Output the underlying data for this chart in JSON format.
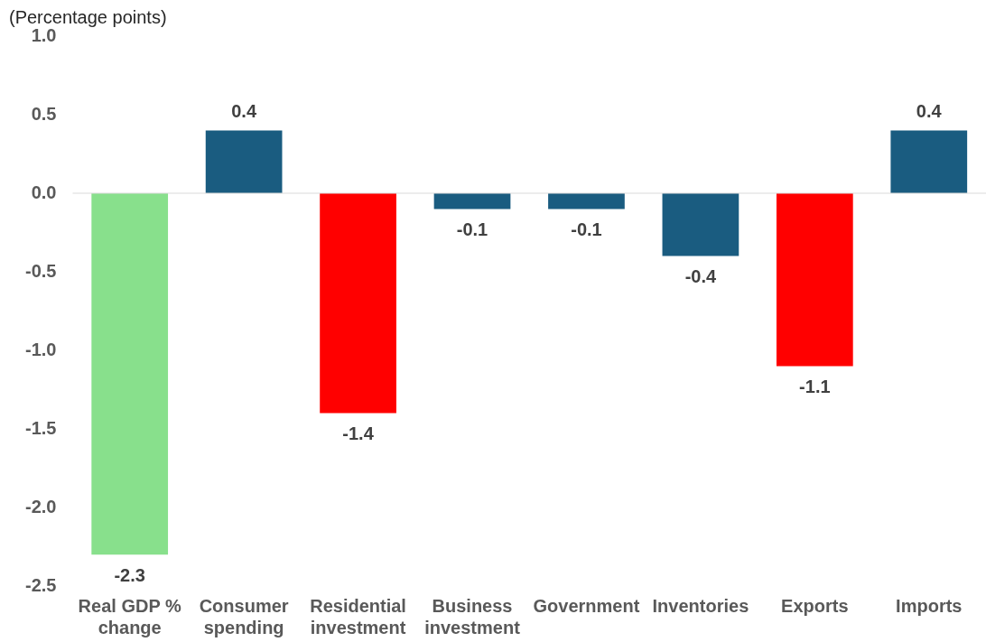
{
  "chart_data": {
    "type": "bar",
    "ylabel": "(Percentage points)",
    "categories": [
      "Real GDP % change",
      "Consumer spending",
      "Residential investment",
      "Business investment",
      "Government",
      "Inventories",
      "Exports",
      "Imports"
    ],
    "values": [
      -2.3,
      0.4,
      -1.4,
      -0.1,
      -0.1,
      -0.4,
      -1.1,
      0.4
    ],
    "colors": [
      "#88e08c",
      "#1a5c80",
      "#ff0000",
      "#1a5c80",
      "#1a5c80",
      "#1a5c80",
      "#ff0000",
      "#1a5c80"
    ],
    "ylim": [
      -2.5,
      1.0
    ],
    "yticks": [
      {
        "value": -2.5,
        "label": "-2.5"
      },
      {
        "value": -2.0,
        "label": "-2.0"
      },
      {
        "value": -1.5,
        "label": "-1.5"
      },
      {
        "value": -1.0,
        "label": "-1.0"
      },
      {
        "value": -0.5,
        "label": "-0.5"
      },
      {
        "value": 0,
        "label": "0.0"
      },
      {
        "value": 0.5,
        "label": "0.5"
      },
      {
        "value": 1.0,
        "label": "1.0"
      }
    ],
    "ref_lines": [
      {
        "axis": "y",
        "value": 0,
        "color": "#d9d9d9"
      }
    ],
    "data_labels": true,
    "legend": false
  }
}
